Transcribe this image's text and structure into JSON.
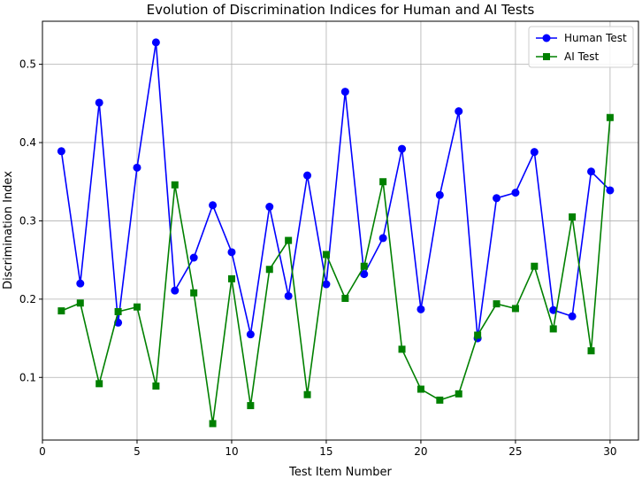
{
  "chart_data": {
    "type": "line",
    "title": "Evolution of Discrimination Indices for Human and AI Tests",
    "xlabel": "Test Item Number",
    "ylabel": "Discrimination Index",
    "xlim": [
      0,
      31.5
    ],
    "ylim": [
      0.02,
      0.555
    ],
    "xticks": [
      0,
      5,
      10,
      15,
      20,
      25,
      30
    ],
    "yticks": [
      0.1,
      0.2,
      0.3,
      0.4,
      0.5
    ],
    "grid": true,
    "legend_position": "top-right",
    "x": [
      1,
      2,
      3,
      4,
      5,
      6,
      7,
      8,
      9,
      10,
      11,
      12,
      13,
      14,
      15,
      16,
      17,
      18,
      19,
      20,
      21,
      22,
      23,
      24,
      25,
      26,
      27,
      28,
      29,
      30
    ],
    "series": [
      {
        "name": "Human Test",
        "color": "#0000ff",
        "marker": "circle",
        "values": [
          0.389,
          0.22,
          0.451,
          0.17,
          0.368,
          0.528,
          0.211,
          0.253,
          0.32,
          0.26,
          0.155,
          0.318,
          0.204,
          0.358,
          0.219,
          0.465,
          0.232,
          0.278,
          0.392,
          0.187,
          0.333,
          0.44,
          0.15,
          0.329,
          0.336,
          0.388,
          0.186,
          0.178,
          0.363,
          0.339
        ]
      },
      {
        "name": "AI Test",
        "color": "#008000",
        "marker": "square",
        "values": [
          0.185,
          0.195,
          0.092,
          0.184,
          0.19,
          0.089,
          0.346,
          0.208,
          0.041,
          0.226,
          0.064,
          0.238,
          0.275,
          0.078,
          0.257,
          0.201,
          0.242,
          0.35,
          0.136,
          0.085,
          0.071,
          0.079,
          0.154,
          0.194,
          0.188,
          0.242,
          0.162,
          0.305,
          0.134,
          0.432
        ]
      }
    ]
  }
}
